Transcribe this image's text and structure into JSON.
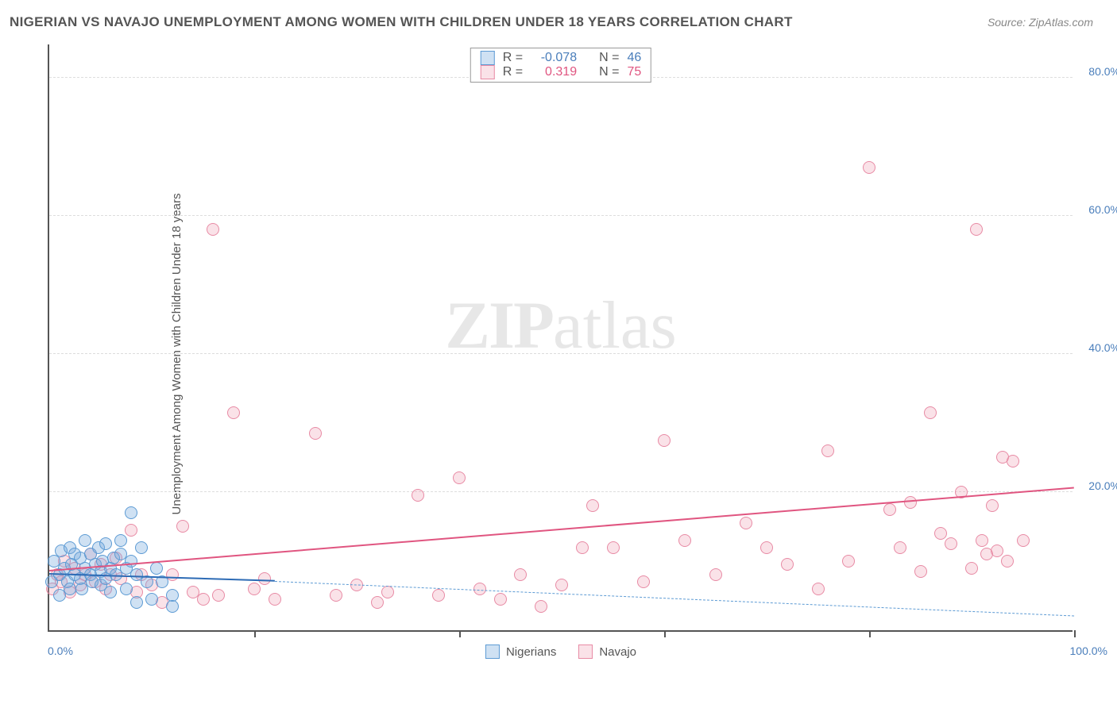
{
  "header": {
    "title": "NIGERIAN VS NAVAJO UNEMPLOYMENT AMONG WOMEN WITH CHILDREN UNDER 18 YEARS CORRELATION CHART",
    "source": "Source: ZipAtlas.com"
  },
  "chart": {
    "type": "scatter",
    "ylabel": "Unemployment Among Women with Children Under 18 years",
    "xlim": [
      0,
      100
    ],
    "ylim": [
      0,
      85
    ],
    "ytick_step": 20,
    "yticks": [
      20,
      40,
      60,
      80
    ],
    "ytick_labels": [
      "20.0%",
      "40.0%",
      "60.0%",
      "80.0%"
    ],
    "xticks": [
      0,
      20,
      40,
      60,
      80,
      100
    ],
    "xtick_labels": {
      "0": "0.0%",
      "100": "100.0%"
    },
    "grid_color": "#dddddd",
    "axis_color": "#555555",
    "background_color": "#ffffff",
    "tick_label_color": "#4a7ebb",
    "watermark": "ZIPatlas",
    "marker_radius": 8,
    "marker_stroke_width": 1.5,
    "series": {
      "nigerians": {
        "label": "Nigerians",
        "fill": "rgba(118,170,220,0.35)",
        "stroke": "#5d9bd4",
        "R": "-0.078",
        "N": "46",
        "value_color": "#4a7ebb",
        "trend": {
          "x1": 0,
          "y1": 8.0,
          "x2": 22,
          "y2": 7.0,
          "color": "#2d6bb5",
          "width": 2.5,
          "dash": false
        },
        "trend_ext": {
          "x1": 22,
          "y1": 7.0,
          "x2": 100,
          "y2": 2.0,
          "color": "#5d9bd4",
          "width": 1.5,
          "dash": true
        },
        "points": [
          [
            0.2,
            7
          ],
          [
            0.5,
            10
          ],
          [
            1,
            8
          ],
          [
            1,
            5
          ],
          [
            1.2,
            11.5
          ],
          [
            1.5,
            9
          ],
          [
            1.8,
            7
          ],
          [
            2,
            12
          ],
          [
            2,
            6
          ],
          [
            2.2,
            9.5
          ],
          [
            2.5,
            8
          ],
          [
            2.5,
            11
          ],
          [
            3,
            7.5
          ],
          [
            3,
            10.5
          ],
          [
            3.2,
            6
          ],
          [
            3.5,
            9
          ],
          [
            3.5,
            13
          ],
          [
            4,
            8
          ],
          [
            4,
            11
          ],
          [
            4.2,
            7
          ],
          [
            4.5,
            9.5
          ],
          [
            4.8,
            12
          ],
          [
            5,
            8.5
          ],
          [
            5,
            6.5
          ],
          [
            5.2,
            10
          ],
          [
            5.5,
            7.5
          ],
          [
            5.5,
            12.5
          ],
          [
            6,
            9
          ],
          [
            6,
            5.5
          ],
          [
            6.3,
            10.5
          ],
          [
            6.5,
            8
          ],
          [
            7,
            11
          ],
          [
            7,
            13
          ],
          [
            7.5,
            9
          ],
          [
            7.5,
            6
          ],
          [
            8,
            10
          ],
          [
            8,
            17
          ],
          [
            8.5,
            8
          ],
          [
            8.5,
            4
          ],
          [
            9,
            12
          ],
          [
            9.5,
            7
          ],
          [
            10,
            4.5
          ],
          [
            10.5,
            9
          ],
          [
            11,
            7
          ],
          [
            12,
            5
          ],
          [
            12,
            3.5
          ]
        ]
      },
      "navajo": {
        "label": "Navajo",
        "fill": "rgba(240,160,180,0.3)",
        "stroke": "#e88ba5",
        "R": "0.319",
        "N": "75",
        "value_color": "#e05580",
        "trend": {
          "x1": 0,
          "y1": 8.5,
          "x2": 100,
          "y2": 20.5,
          "color": "#e05580",
          "width": 2.5,
          "dash": false
        },
        "points": [
          [
            0.3,
            6
          ],
          [
            0.8,
            8
          ],
          [
            1.2,
            7
          ],
          [
            1.5,
            10
          ],
          [
            2,
            5.5
          ],
          [
            2.5,
            9
          ],
          [
            3,
            6.5
          ],
          [
            3.5,
            8
          ],
          [
            4,
            11
          ],
          [
            4.5,
            7
          ],
          [
            5,
            9.5
          ],
          [
            5.5,
            6
          ],
          [
            6,
            8
          ],
          [
            6.5,
            10.5
          ],
          [
            7,
            7.5
          ],
          [
            8,
            14.5
          ],
          [
            8.5,
            5.5
          ],
          [
            9,
            8
          ],
          [
            10,
            6.5
          ],
          [
            11,
            4
          ],
          [
            12,
            8
          ],
          [
            13,
            15
          ],
          [
            14,
            5.5
          ],
          [
            15,
            4.5
          ],
          [
            16,
            58
          ],
          [
            16.5,
            5
          ],
          [
            18,
            31.5
          ],
          [
            20,
            6
          ],
          [
            21,
            7.5
          ],
          [
            22,
            4.5
          ],
          [
            26,
            28.5
          ],
          [
            28,
            5
          ],
          [
            30,
            6.5
          ],
          [
            32,
            4
          ],
          [
            33,
            5.5
          ],
          [
            36,
            19.5
          ],
          [
            38,
            5
          ],
          [
            40,
            22
          ],
          [
            42,
            6
          ],
          [
            44,
            4.5
          ],
          [
            46,
            8
          ],
          [
            48,
            3.5
          ],
          [
            50,
            6.5
          ],
          [
            52,
            12
          ],
          [
            53,
            18
          ],
          [
            55,
            12
          ],
          [
            58,
            7
          ],
          [
            60,
            27.5
          ],
          [
            62,
            13
          ],
          [
            65,
            8
          ],
          [
            68,
            15.5
          ],
          [
            70,
            12
          ],
          [
            72,
            9.5
          ],
          [
            75,
            6
          ],
          [
            76,
            26
          ],
          [
            78,
            10
          ],
          [
            80,
            67
          ],
          [
            82,
            17.5
          ],
          [
            83,
            12
          ],
          [
            84,
            18.5
          ],
          [
            85,
            8.5
          ],
          [
            86,
            31.5
          ],
          [
            87,
            14
          ],
          [
            88,
            12.5
          ],
          [
            89,
            20
          ],
          [
            90,
            9
          ],
          [
            90.5,
            58
          ],
          [
            91,
            13
          ],
          [
            91.5,
            11
          ],
          [
            92,
            18
          ],
          [
            92.5,
            11.5
          ],
          [
            93,
            25
          ],
          [
            93.5,
            10
          ],
          [
            94,
            24.5
          ],
          [
            95,
            13
          ]
        ]
      }
    },
    "legend_stats": {
      "r_label": "R =",
      "n_label": "N ="
    }
  }
}
